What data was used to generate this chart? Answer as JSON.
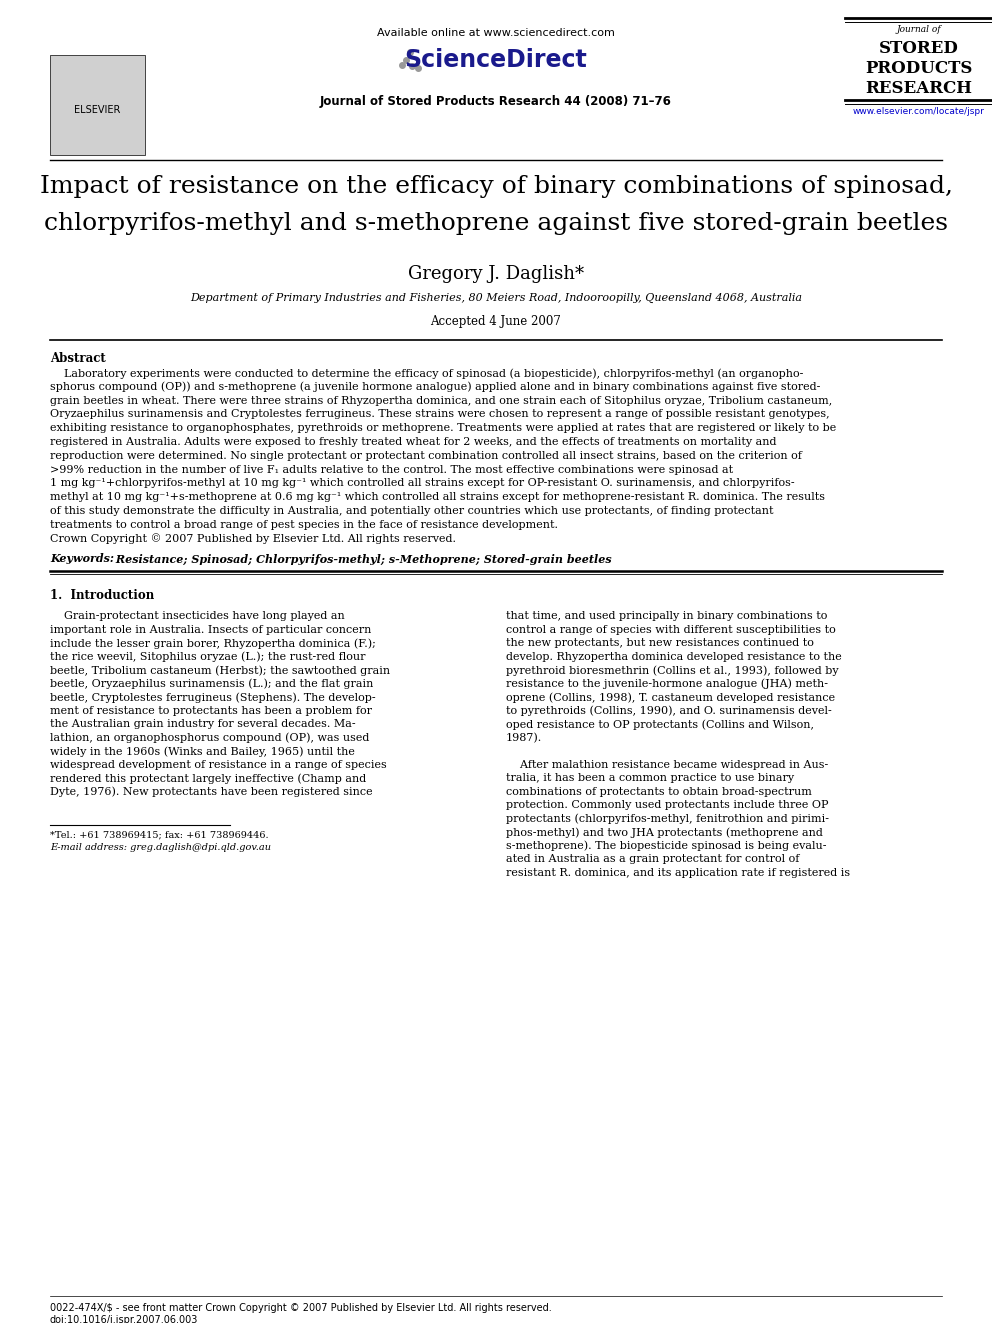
{
  "page_width": 9.92,
  "page_height": 13.23,
  "dpi": 100,
  "bg_color": "#ffffff",
  "header": {
    "available_online": "Available online at www.sciencedirect.com",
    "journal_line": "Journal of Stored Products Research 44 (2008) 71–76",
    "journal_label": "Journal of",
    "url": "www.elsevier.com/locate/jspr"
  },
  "title_line1": "Impact of resistance on the efficacy of binary combinations of spinosad,",
  "title_line2_pre": "chlorpyrifos-methyl and ",
  "title_line2_s": "s",
  "title_line2_post": "-methoprene against five stored-grain beetles",
  "author": "Gregory J. Daglish*",
  "affiliation": "Department of Primary Industries and Fisheries, 80 Meiers Road, Indooroopilly, Queensland 4068, Australia",
  "accepted": "Accepted 4 June 2007",
  "abstract_heading": "Abstract",
  "keywords_label": "Keywords:",
  "keywords_text": " Resistance; Spinosad; Chlorpyrifos-methyl; s-Methoprene; Stored-grain beetles",
  "section1_heading": "1.  Introduction",
  "footnote_star": "*Tel.: +61 738969415; fax: +61 738969446.",
  "footnote_email": "E-mail address: greg.daglish@dpi.qld.gov.au",
  "footer_left": "0022-474X/$ - see front matter Crown Copyright © 2007 Published by Elsevier Ltd. All rights reserved.",
  "footer_doi": "doi:10.1016/j.jspr.2007.06.003",
  "abstract_lines": [
    "    Laboratory experiments were conducted to determine the efficacy of spinosad (a biopesticide), chlorpyrifos-methyl (an organopho-",
    "sphorus compound (OP)) and s-methoprene (a juvenile hormone analogue) applied alone and in binary combinations against five stored-",
    "grain beetles in wheat. There were three strains of Rhyzopertha dominica, and one strain each of Sitophilus oryzae, Tribolium castaneum,",
    "Oryzaephilus surinamensis and Cryptolestes ferrugineus. These strains were chosen to represent a range of possible resistant genotypes,",
    "exhibiting resistance to organophosphates, pyrethroids or methoprene. Treatments were applied at rates that are registered or likely to be",
    "registered in Australia. Adults were exposed to freshly treated wheat for 2 weeks, and the effects of treatments on mortality and",
    "reproduction were determined. No single protectant or protectant combination controlled all insect strains, based on the criterion of",
    ">99% reduction in the number of live F₁ adults relative to the control. The most effective combinations were spinosad at",
    "1 mg kg⁻¹+chlorpyrifos-methyl at 10 mg kg⁻¹ which controlled all strains except for OP-resistant O. surinamensis, and chlorpyrifos-",
    "methyl at 10 mg kg⁻¹+s-methoprene at 0.6 mg kg⁻¹ which controlled all strains except for methoprene-resistant R. dominica. The results",
    "of this study demonstrate the difficulty in Australia, and potentially other countries which use protectants, of finding protectant",
    "treatments to control a broad range of pest species in the face of resistance development.",
    "Crown Copyright © 2007 Published by Elsevier Ltd. All rights reserved."
  ],
  "intro_left_lines": [
    "    Grain-protectant insecticides have long played an",
    "important role in Australia. Insects of particular concern",
    "include the lesser grain borer, Rhyzopertha dominica (F.);",
    "the rice weevil, Sitophilus oryzae (L.); the rust-red flour",
    "beetle, Tribolium castaneum (Herbst); the sawtoothed grain",
    "beetle, Oryzaephilus surinamensis (L.); and the flat grain",
    "beetle, Cryptolestes ferrugineus (Stephens). The develop-",
    "ment of resistance to protectants has been a problem for",
    "the Australian grain industry for several decades. Ma-",
    "lathion, an organophosphorus compound (OP), was used",
    "widely in the 1960s (Winks and Bailey, 1965) until the",
    "widespread development of resistance in a range of species",
    "rendered this protectant largely ineffective (Champ and",
    "Dyte, 1976). New protectants have been registered since"
  ],
  "intro_right_lines": [
    "that time, and used principally in binary combinations to",
    "control a range of species with different susceptibilities to",
    "the new protectants, but new resistances continued to",
    "develop. Rhyzopertha dominica developed resistance to the",
    "pyrethroid bioresmethrin (Collins et al., 1993), followed by",
    "resistance to the juvenile-hormone analogue (JHA) meth-",
    "oprene (Collins, 1998), T. castaneum developed resistance",
    "to pyrethroids (Collins, 1990), and O. surinamensis devel-",
    "oped resistance to OP protectants (Collins and Wilson,",
    "1987).",
    "",
    "    After malathion resistance became widespread in Aus-",
    "tralia, it has been a common practice to use binary",
    "combinations of protectants to obtain broad-spectrum",
    "protection. Commonly used protectants include three OP",
    "protectants (chlorpyrifos-methyl, fenitrothion and pirimi-",
    "phos-methyl) and two JHA protectants (methoprene and",
    "s-methoprene). The biopesticide spinosad is being evalu-",
    "ated in Australia as a grain protectant for control of",
    "resistant R. dominica, and its application rate if registered is"
  ]
}
